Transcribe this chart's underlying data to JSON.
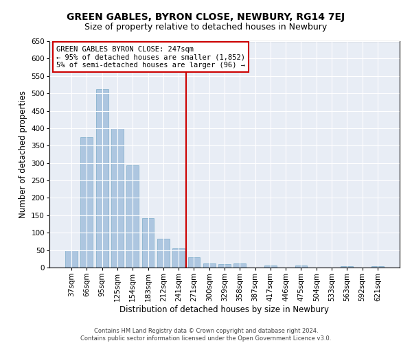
{
  "title": "GREEN GABLES, BYRON CLOSE, NEWBURY, RG14 7EJ",
  "subtitle": "Size of property relative to detached houses in Newbury",
  "xlabel": "Distribution of detached houses by size in Newbury",
  "ylabel": "Number of detached properties",
  "footer_line1": "Contains HM Land Registry data © Crown copyright and database right 2024.",
  "footer_line2": "Contains public sector information licensed under the Open Government Licence v3.0.",
  "categories": [
    "37sqm",
    "66sqm",
    "95sqm",
    "125sqm",
    "154sqm",
    "183sqm",
    "212sqm",
    "241sqm",
    "271sqm",
    "300sqm",
    "329sqm",
    "358sqm",
    "387sqm",
    "417sqm",
    "446sqm",
    "475sqm",
    "504sqm",
    "533sqm",
    "563sqm",
    "592sqm",
    "621sqm"
  ],
  "values": [
    50,
    375,
    512,
    400,
    293,
    141,
    82,
    55,
    30,
    11,
    9,
    11,
    0,
    5,
    0,
    5,
    0,
    0,
    4,
    0,
    4
  ],
  "bar_color": "#adc6e0",
  "bar_edge_color": "#7aaac8",
  "background_color": "#e8edf5",
  "grid_color": "#ffffff",
  "vline_color": "#cc0000",
  "vline_x": 7.5,
  "annotation_title": "GREEN GABLES BYRON CLOSE: 247sqm",
  "annotation_line1": "← 95% of detached houses are smaller (1,852)",
  "annotation_line2": "5% of semi-detached houses are larger (96) →",
  "ylim": [
    0,
    650
  ],
  "yticks": [
    0,
    50,
    100,
    150,
    200,
    250,
    300,
    350,
    400,
    450,
    500,
    550,
    600,
    650
  ],
  "title_fontsize": 10,
  "subtitle_fontsize": 9,
  "xlabel_fontsize": 8.5,
  "ylabel_fontsize": 8.5,
  "tick_fontsize": 7.5,
  "annotation_fontsize": 7.5,
  "footer_fontsize": 6
}
